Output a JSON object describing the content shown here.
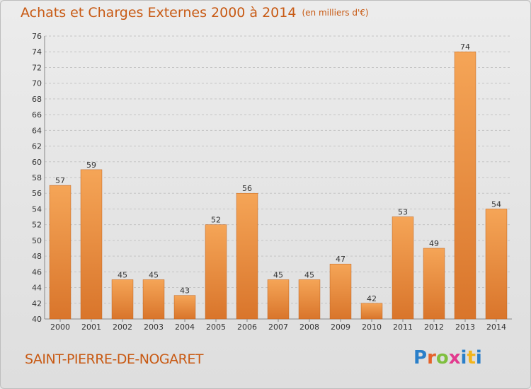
{
  "header": {
    "title": "Achats et Charges Externes 2000 à 2014",
    "unit": "(en milliers d'€)"
  },
  "footer": {
    "commune": "SAINT-PIERRE-DE-NOGARET",
    "logo_letters": [
      "P",
      "r",
      "o",
      "x",
      "i",
      "t",
      "i"
    ]
  },
  "colors": {
    "title": "#c85a14",
    "bar_light": "#f5a557",
    "bar_dark": "#d9752b",
    "logo": [
      "#2a7fc9",
      "#e5622a",
      "#7fbf3f",
      "#e23a8e",
      "#2a7fc9",
      "#f3b51c",
      "#2a7fc9"
    ]
  },
  "chart_data": {
    "type": "bar",
    "title": "Achats et Charges Externes 2000 à 2014",
    "categories": [
      "2000",
      "2001",
      "2002",
      "2003",
      "2004",
      "2005",
      "2006",
      "2007",
      "2008",
      "2009",
      "2010",
      "2011",
      "2012",
      "2013",
      "2014"
    ],
    "values": [
      57,
      59,
      45,
      45,
      43,
      52,
      56,
      45,
      45,
      47,
      42,
      53,
      49,
      74,
      54
    ],
    "ylim": [
      40,
      76
    ],
    "yticks": [
      40,
      42,
      44,
      46,
      48,
      50,
      52,
      54,
      56,
      58,
      60,
      62,
      64,
      66,
      68,
      70,
      72,
      74,
      76
    ],
    "grid": true,
    "xlabel": "",
    "ylabel": ""
  }
}
